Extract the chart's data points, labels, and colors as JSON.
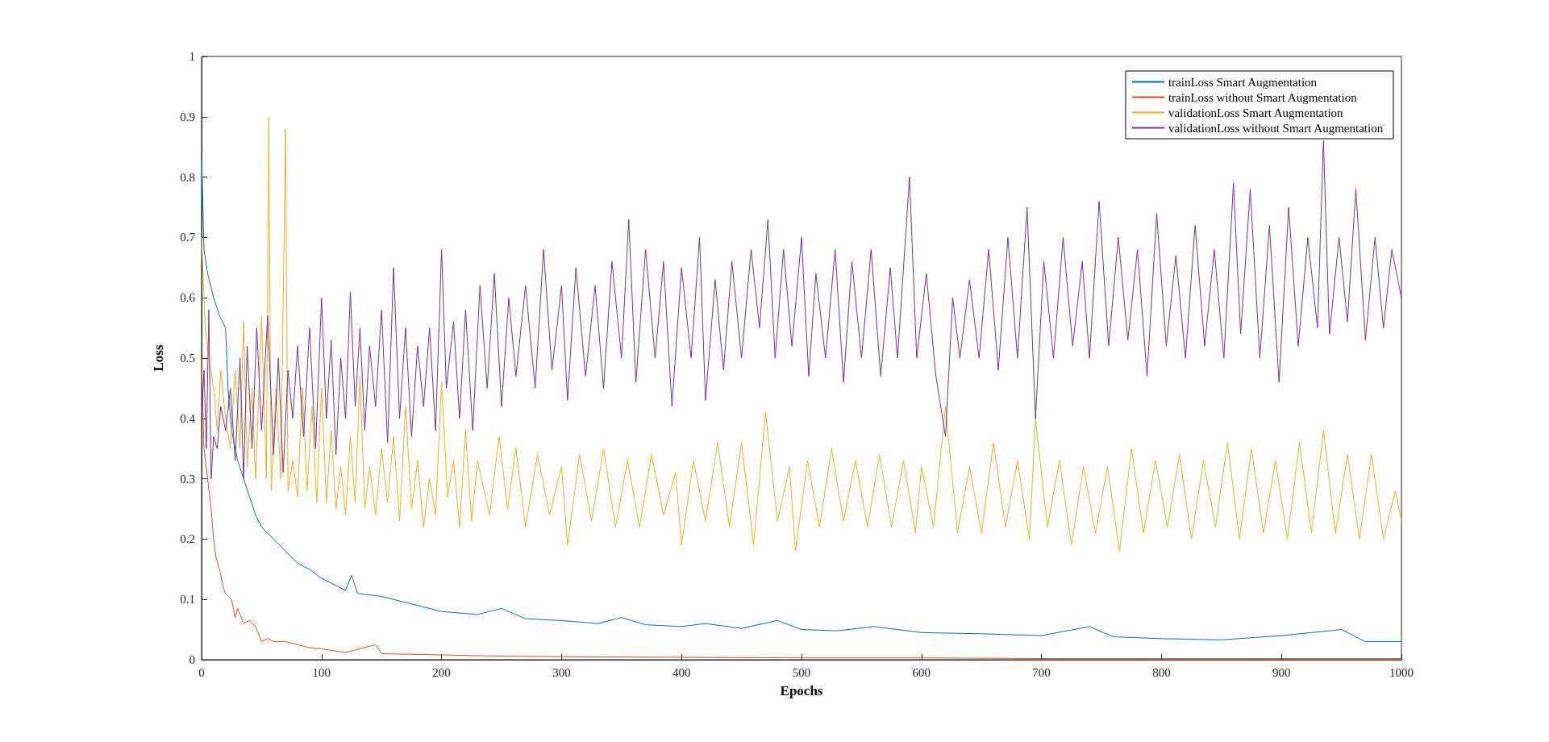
{
  "chart_data": {
    "type": "line",
    "xlabel": "Epochs",
    "ylabel": "Loss",
    "xlim": [
      0,
      1000
    ],
    "ylim": [
      0,
      1
    ],
    "xticks": [
      0,
      100,
      200,
      300,
      400,
      500,
      600,
      700,
      800,
      900,
      1000
    ],
    "yticks": [
      0,
      0.1,
      0.2,
      0.3,
      0.4,
      0.5,
      0.6,
      0.7,
      0.8,
      0.9,
      1
    ],
    "grid": false,
    "legend": "top right",
    "marker": "none",
    "line_style": "solid",
    "series": [
      {
        "name": "trainLoss Smart Augmentation",
        "color": "#0072bd",
        "x": [
          0,
          2,
          5,
          10,
          15,
          20,
          22,
          25,
          30,
          35,
          40,
          45,
          50,
          60,
          70,
          80,
          90,
          100,
          110,
          120,
          125,
          130,
          150,
          170,
          200,
          230,
          250,
          270,
          300,
          330,
          350,
          370,
          400,
          420,
          450,
          480,
          500,
          530,
          560,
          600,
          650,
          700,
          740,
          760,
          800,
          850,
          900,
          950,
          970,
          1000
        ],
        "values": [
          0.84,
          0.68,
          0.64,
          0.6,
          0.57,
          0.55,
          0.45,
          0.38,
          0.33,
          0.3,
          0.27,
          0.24,
          0.22,
          0.2,
          0.18,
          0.16,
          0.15,
          0.135,
          0.125,
          0.115,
          0.14,
          0.11,
          0.105,
          0.095,
          0.08,
          0.075,
          0.085,
          0.068,
          0.065,
          0.06,
          0.07,
          0.058,
          0.055,
          0.06,
          0.052,
          0.065,
          0.05,
          0.048,
          0.055,
          0.045,
          0.043,
          0.04,
          0.055,
          0.038,
          0.035,
          0.033,
          0.04,
          0.05,
          0.03,
          0.03
        ]
      },
      {
        "name": "trainLoss without Smart Augmentation",
        "color": "#d95319",
        "x": [
          0,
          2,
          5,
          8,
          10,
          12,
          15,
          18,
          20,
          25,
          28,
          30,
          35,
          40,
          45,
          50,
          55,
          60,
          70,
          80,
          90,
          100,
          120,
          145,
          150,
          200,
          250,
          300,
          400,
          500,
          600,
          700,
          800,
          900,
          1000
        ],
        "values": [
          0.5,
          0.35,
          0.3,
          0.25,
          0.2,
          0.17,
          0.15,
          0.12,
          0.11,
          0.1,
          0.07,
          0.085,
          0.06,
          0.065,
          0.055,
          0.03,
          0.035,
          0.03,
          0.03,
          0.025,
          0.02,
          0.018,
          0.012,
          0.025,
          0.01,
          0.008,
          0.006,
          0.005,
          0.004,
          0.003,
          0.003,
          0.002,
          0.002,
          0.002,
          0.002
        ]
      },
      {
        "name": "validationLoss Smart Augmentation",
        "color": "#edb120",
        "x": [
          0,
          3,
          6,
          10,
          13,
          16,
          20,
          24,
          28,
          32,
          35,
          38,
          42,
          45,
          50,
          54,
          56,
          58,
          62,
          66,
          70,
          72,
          76,
          80,
          84,
          88,
          92,
          96,
          100,
          104,
          108,
          112,
          116,
          120,
          124,
          128,
          132,
          136,
          140,
          145,
          150,
          155,
          160,
          165,
          170,
          175,
          180,
          185,
          190,
          195,
          200,
          205,
          210,
          215,
          220,
          225,
          230,
          240,
          248,
          255,
          262,
          270,
          280,
          290,
          300,
          305,
          315,
          325,
          335,
          345,
          355,
          365,
          375,
          385,
          395,
          400,
          410,
          420,
          430,
          440,
          450,
          460,
          470,
          480,
          490,
          495,
          505,
          515,
          525,
          535,
          545,
          555,
          565,
          575,
          585,
          595,
          600,
          610,
          620,
          630,
          640,
          650,
          660,
          670,
          680,
          690,
          695,
          705,
          715,
          725,
          735,
          745,
          755,
          765,
          775,
          785,
          795,
          805,
          815,
          825,
          835,
          845,
          855,
          865,
          875,
          885,
          895,
          905,
          915,
          925,
          935,
          945,
          955,
          965,
          975,
          985,
          995,
          1000
        ],
        "values": [
          0.7,
          0.55,
          0.5,
          0.45,
          0.38,
          0.48,
          0.4,
          0.35,
          0.48,
          0.35,
          0.56,
          0.32,
          0.45,
          0.3,
          0.57,
          0.3,
          0.9,
          0.28,
          0.45,
          0.3,
          0.88,
          0.28,
          0.33,
          0.27,
          0.45,
          0.28,
          0.42,
          0.26,
          0.45,
          0.26,
          0.38,
          0.25,
          0.32,
          0.24,
          0.37,
          0.26,
          0.47,
          0.25,
          0.32,
          0.24,
          0.35,
          0.26,
          0.37,
          0.23,
          0.42,
          0.25,
          0.33,
          0.22,
          0.3,
          0.24,
          0.46,
          0.27,
          0.33,
          0.22,
          0.38,
          0.23,
          0.33,
          0.24,
          0.37,
          0.25,
          0.35,
          0.22,
          0.34,
          0.24,
          0.32,
          0.19,
          0.34,
          0.23,
          0.35,
          0.22,
          0.33,
          0.22,
          0.34,
          0.24,
          0.31,
          0.19,
          0.33,
          0.23,
          0.36,
          0.22,
          0.36,
          0.19,
          0.41,
          0.23,
          0.32,
          0.18,
          0.33,
          0.22,
          0.35,
          0.23,
          0.33,
          0.22,
          0.34,
          0.22,
          0.33,
          0.21,
          0.32,
          0.22,
          0.42,
          0.21,
          0.32,
          0.21,
          0.36,
          0.22,
          0.33,
          0.2,
          0.4,
          0.22,
          0.33,
          0.19,
          0.32,
          0.21,
          0.32,
          0.18,
          0.35,
          0.21,
          0.33,
          0.22,
          0.34,
          0.2,
          0.33,
          0.22,
          0.36,
          0.2,
          0.35,
          0.21,
          0.33,
          0.2,
          0.36,
          0.21,
          0.38,
          0.21,
          0.34,
          0.2,
          0.34,
          0.2,
          0.28,
          0.23
        ]
      },
      {
        "name": "validationLoss without Smart Augmentation",
        "color": "#7e2f8e",
        "x": [
          0,
          2,
          4,
          6,
          8,
          10,
          13,
          16,
          20,
          24,
          28,
          32,
          35,
          38,
          42,
          46,
          50,
          55,
          60,
          64,
          68,
          72,
          76,
          80,
          85,
          90,
          95,
          100,
          104,
          108,
          112,
          116,
          120,
          124,
          128,
          132,
          136,
          140,
          145,
          150,
          155,
          160,
          165,
          170,
          175,
          180,
          185,
          190,
          195,
          200,
          204,
          210,
          215,
          220,
          226,
          232,
          238,
          244,
          250,
          256,
          262,
          270,
          278,
          285,
          292,
          300,
          305,
          312,
          320,
          328,
          335,
          342,
          350,
          356,
          362,
          370,
          378,
          385,
          392,
          400,
          408,
          415,
          420,
          428,
          435,
          442,
          450,
          458,
          465,
          472,
          478,
          485,
          492,
          500,
          506,
          512,
          520,
          528,
          535,
          542,
          550,
          558,
          566,
          574,
          580,
          590,
          596,
          604,
          612,
          620,
          626,
          632,
          640,
          648,
          656,
          664,
          672,
          680,
          688,
          695,
          702,
          710,
          718,
          726,
          734,
          740,
          748,
          756,
          764,
          772,
          780,
          788,
          796,
          804,
          812,
          820,
          828,
          836,
          844,
          852,
          860,
          866,
          874,
          882,
          890,
          898,
          906,
          914,
          922,
          930,
          935,
          940,
          948,
          955,
          962,
          970,
          978,
          985,
          992,
          1000
        ],
        "values": [
          0.4,
          0.48,
          0.35,
          0.58,
          0.3,
          0.37,
          0.35,
          0.42,
          0.38,
          0.45,
          0.33,
          0.5,
          0.3,
          0.52,
          0.35,
          0.55,
          0.38,
          0.57,
          0.34,
          0.5,
          0.31,
          0.48,
          0.4,
          0.52,
          0.37,
          0.55,
          0.35,
          0.6,
          0.4,
          0.53,
          0.34,
          0.5,
          0.4,
          0.61,
          0.42,
          0.55,
          0.38,
          0.52,
          0.42,
          0.58,
          0.36,
          0.65,
          0.4,
          0.55,
          0.37,
          0.52,
          0.42,
          0.55,
          0.38,
          0.68,
          0.45,
          0.56,
          0.4,
          0.58,
          0.38,
          0.62,
          0.45,
          0.64,
          0.42,
          0.6,
          0.47,
          0.62,
          0.45,
          0.68,
          0.48,
          0.62,
          0.43,
          0.65,
          0.47,
          0.62,
          0.45,
          0.66,
          0.5,
          0.73,
          0.46,
          0.68,
          0.5,
          0.66,
          0.42,
          0.65,
          0.5,
          0.7,
          0.43,
          0.63,
          0.48,
          0.66,
          0.5,
          0.68,
          0.55,
          0.73,
          0.5,
          0.68,
          0.52,
          0.7,
          0.47,
          0.64,
          0.5,
          0.68,
          0.46,
          0.66,
          0.5,
          0.68,
          0.47,
          0.65,
          0.5,
          0.8,
          0.5,
          0.64,
          0.47,
          0.37,
          0.6,
          0.5,
          0.63,
          0.5,
          0.68,
          0.48,
          0.7,
          0.5,
          0.75,
          0.4,
          0.66,
          0.5,
          0.7,
          0.52,
          0.66,
          0.5,
          0.76,
          0.52,
          0.7,
          0.53,
          0.68,
          0.47,
          0.74,
          0.52,
          0.67,
          0.5,
          0.72,
          0.52,
          0.68,
          0.5,
          0.79,
          0.54,
          0.78,
          0.5,
          0.72,
          0.46,
          0.75,
          0.52,
          0.7,
          0.55,
          0.86,
          0.54,
          0.7,
          0.56,
          0.78,
          0.53,
          0.7,
          0.55,
          0.68,
          0.6
        ]
      }
    ]
  }
}
